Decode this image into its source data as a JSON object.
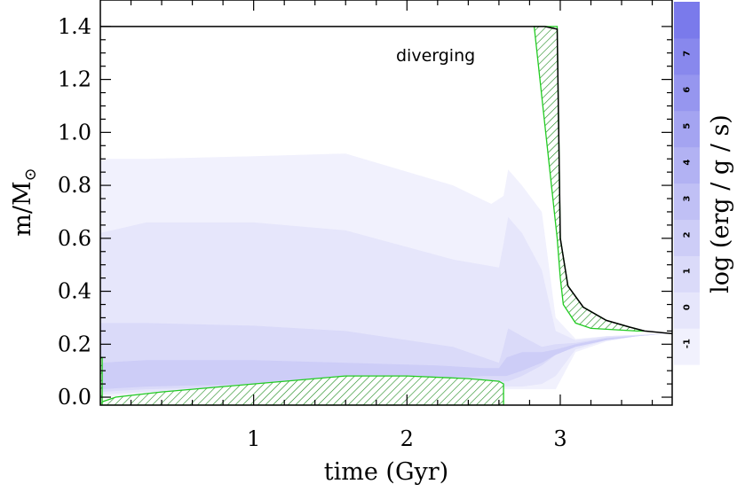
{
  "chart_data": {
    "type": "area",
    "title": "",
    "xlabel": "time  (Gyr)",
    "ylabel": "m/M",
    "ylabel_sub": "⊙",
    "xlim": [
      0,
      3.73
    ],
    "ylim": [
      -0.03,
      1.5
    ],
    "x_ticks": [
      1,
      2,
      3
    ],
    "y_ticks": [
      0.0,
      0.2,
      0.4,
      0.6,
      0.8,
      1.0,
      1.2,
      1.4
    ],
    "y_tick_labels": [
      "0.0",
      "0.2",
      "0.4",
      "0.6",
      "0.8",
      "1.0",
      "1.2",
      "1.4"
    ],
    "annotation": "diverging",
    "colorbar": {
      "label": "log (erg / g / s)",
      "ticks": [
        "-1",
        "0",
        "1",
        "2",
        "3",
        "4",
        "5",
        "6",
        "7"
      ],
      "colors": [
        "#f1f1fd",
        "#e6e6fb",
        "#dadaf9",
        "#cdcdf7",
        "#c0c0f5",
        "#b2b2f3",
        "#a4a4f1",
        "#9696ef",
        "#8888ed",
        "#7a7aeb"
      ]
    },
    "mass_line": {
      "time": [
        0.0,
        1.0,
        2.0,
        2.9,
        2.98,
        3.0,
        3.05,
        3.15,
        3.3,
        3.45,
        3.55,
        3.73
      ],
      "mass": [
        1.4,
        1.4,
        1.4,
        1.4,
        1.39,
        0.6,
        0.42,
        0.34,
        0.29,
        0.265,
        0.25,
        0.24
      ]
    },
    "burning_regions": [
      {
        "level": -1,
        "time": [
          0.0,
          0.3,
          1.0,
          1.6,
          2.3,
          2.55,
          2.63,
          2.66,
          2.75,
          2.88,
          2.97,
          3.1,
          3.3,
          3.5,
          3.7
        ],
        "upper": [
          0.9,
          0.9,
          0.91,
          0.92,
          0.8,
          0.73,
          0.76,
          0.86,
          0.8,
          0.7,
          0.3,
          0.22,
          0.23,
          0.235,
          0.24
        ],
        "lower": [
          0.0,
          0.01,
          0.02,
          0.03,
          0.03,
          0.03,
          0.03,
          0.03,
          0.03,
          0.03,
          0.03,
          0.17,
          0.21,
          0.23,
          0.24
        ]
      },
      {
        "level": 0,
        "time": [
          0.0,
          0.3,
          1.0,
          1.6,
          2.3,
          2.6,
          2.63,
          2.66,
          2.75,
          2.88,
          2.97,
          3.1,
          3.3,
          3.5,
          3.7
        ],
        "upper": [
          0.62,
          0.66,
          0.66,
          0.63,
          0.52,
          0.49,
          0.58,
          0.68,
          0.62,
          0.48,
          0.25,
          0.215,
          0.23,
          0.235,
          0.24
        ],
        "lower": [
          0.01,
          0.02,
          0.03,
          0.04,
          0.04,
          0.04,
          0.04,
          0.04,
          0.04,
          0.05,
          0.08,
          0.18,
          0.215,
          0.23,
          0.24
        ]
      },
      {
        "level": 1,
        "time": [
          0.0,
          0.3,
          1.0,
          1.6,
          2.3,
          2.6,
          2.63,
          2.66,
          2.75,
          2.88,
          2.97,
          3.1,
          3.3,
          3.5,
          3.7
        ],
        "upper": [
          0.28,
          0.28,
          0.27,
          0.25,
          0.19,
          0.13,
          0.19,
          0.26,
          0.23,
          0.19,
          0.2,
          0.205,
          0.225,
          0.233,
          0.24
        ],
        "lower": [
          0.02,
          0.03,
          0.04,
          0.05,
          0.06,
          0.06,
          0.06,
          0.06,
          0.08,
          0.12,
          0.16,
          0.19,
          0.215,
          0.23,
          0.24
        ]
      },
      {
        "level": 2,
        "time": [
          0.0,
          0.3,
          1.0,
          1.6,
          2.2,
          2.5,
          2.6,
          2.65,
          2.75,
          2.88,
          2.97,
          3.1,
          3.3,
          3.5,
          3.7
        ],
        "upper": [
          0.13,
          0.14,
          0.14,
          0.13,
          0.12,
          0.11,
          0.11,
          0.15,
          0.17,
          0.17,
          0.18,
          0.2,
          0.222,
          0.232,
          0.24
        ],
        "lower": [
          0.03,
          0.04,
          0.05,
          0.06,
          0.07,
          0.08,
          0.08,
          0.08,
          0.1,
          0.13,
          0.16,
          0.19,
          0.215,
          0.23,
          0.24
        ]
      }
    ],
    "convective_regions": [
      {
        "name": "core",
        "time": [
          0.0,
          0.1,
          0.4,
          0.8,
          1.2,
          1.6,
          2.0,
          2.4,
          2.6,
          2.63,
          2.63,
          0.0
        ],
        "mass": [
          -0.02,
          0.0,
          0.02,
          0.04,
          0.06,
          0.08,
          0.08,
          0.07,
          0.06,
          0.05,
          -0.03,
          -0.03
        ]
      },
      {
        "name": "envelope",
        "time": [
          2.83,
          2.98,
          2.98,
          3.0,
          3.05,
          3.15,
          3.3,
          3.45,
          3.55,
          3.5,
          3.35,
          3.2,
          3.1,
          3.02,
          3.0,
          2.98
        ],
        "mass": [
          1.4,
          1.4,
          1.39,
          0.6,
          0.42,
          0.34,
          0.29,
          0.265,
          0.25,
          0.25,
          0.255,
          0.26,
          0.28,
          0.35,
          0.45,
          0.6
        ]
      },
      {
        "name": "left-edge",
        "time": [
          0.0,
          0.012,
          0.012,
          0.0
        ],
        "mass": [
          0.15,
          0.15,
          -0.03,
          -0.03
        ]
      }
    ]
  }
}
